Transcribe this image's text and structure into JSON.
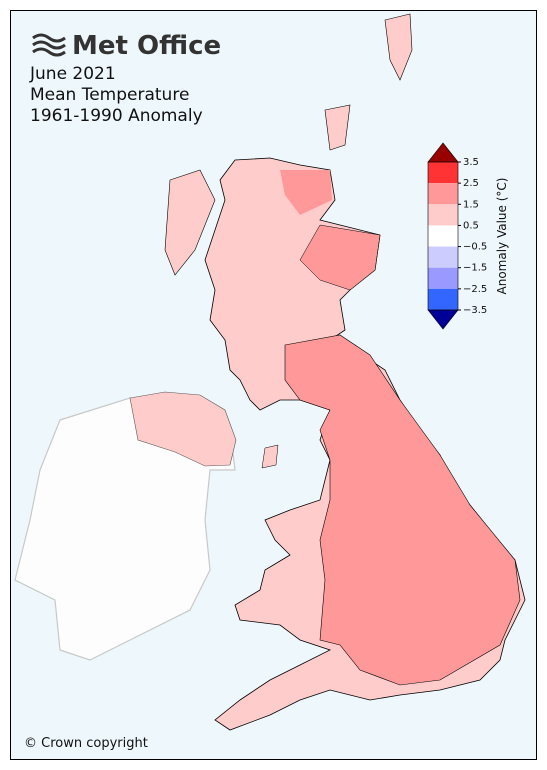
{
  "header": {
    "logo": "Met Office",
    "title_lines": [
      "June 2021",
      "Mean Temperature",
      "1961-1990 Anomaly"
    ]
  },
  "colorbar": {
    "label": "Anomaly Value (°C)",
    "ticks": [
      3.5,
      2.5,
      1.5,
      0.5,
      {
        "value": -0.5,
        "label": "−0.5"
      },
      {
        "value": -1.5,
        "label": "−1.5"
      },
      {
        "value": -2.5,
        "label": "−2.5"
      },
      {
        "value": -3.5,
        "label": "−3.5"
      }
    ],
    "colors": [
      "#ff3333",
      "#ff9999",
      "#ffcccc",
      "#ffffff",
      "#ccccff",
      "#9999ff",
      "#3366ff"
    ],
    "extend_colors": [
      "#990000",
      "#000099"
    ]
  },
  "footer": {
    "copyright": "© Crown copyright"
  }
}
